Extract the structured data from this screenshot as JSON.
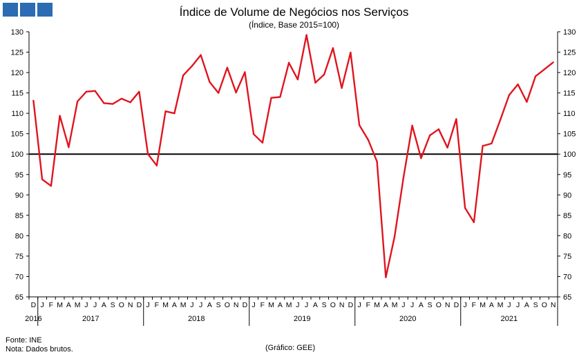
{
  "header": {
    "title": "Índice de Volume de Negócios nos Serviços",
    "subtitle": "(Índice, Base 2015=100)"
  },
  "footer": {
    "source": "Fonte: INE",
    "note": "Nota: Dados brutos.",
    "credit": "(Gráfico: GEE)"
  },
  "colors": {
    "series": "#e0141e",
    "reference_line": "#000000",
    "logo": "#2b6cb3"
  },
  "chart_data": {
    "type": "line",
    "title": "Índice de Volume de Negócios nos Serviços",
    "subtitle": "(Índice, Base 2015=100)",
    "ylim": [
      65,
      130
    ],
    "yticks": [
      65,
      70,
      75,
      80,
      85,
      90,
      95,
      100,
      105,
      110,
      115,
      120,
      125,
      130
    ],
    "y_axis_both_sides": true,
    "grid": false,
    "reference_line": 100,
    "month_labels": [
      "D",
      "J",
      "F",
      "M",
      "A",
      "M",
      "J",
      "J",
      "A",
      "S",
      "O",
      "N",
      "D",
      "J",
      "F",
      "M",
      "A",
      "M",
      "J",
      "J",
      "A",
      "S",
      "O",
      "N",
      "D",
      "J",
      "F",
      "M",
      "A",
      "M",
      "J",
      "J",
      "A",
      "S",
      "O",
      "N",
      "D",
      "J",
      "F",
      "M",
      "A",
      "M",
      "J",
      "J",
      "A",
      "S",
      "O",
      "N",
      "D",
      "J",
      "F",
      "M",
      "A",
      "M",
      "J",
      "J",
      "A",
      "S",
      "O",
      "N"
    ],
    "year_labels": [
      "2016",
      "2017",
      "2018",
      "2019",
      "2020",
      "2021"
    ],
    "x": [
      "2016-12",
      "2017-01",
      "2017-02",
      "2017-03",
      "2017-04",
      "2017-05",
      "2017-06",
      "2017-07",
      "2017-08",
      "2017-09",
      "2017-10",
      "2017-11",
      "2017-12",
      "2018-01",
      "2018-02",
      "2018-03",
      "2018-04",
      "2018-05",
      "2018-06",
      "2018-07",
      "2018-08",
      "2018-09",
      "2018-10",
      "2018-11",
      "2018-12",
      "2019-01",
      "2019-02",
      "2019-03",
      "2019-04",
      "2019-05",
      "2019-06",
      "2019-07",
      "2019-08",
      "2019-09",
      "2019-10",
      "2019-11",
      "2019-12",
      "2020-01",
      "2020-02",
      "2020-03",
      "2020-04",
      "2020-05",
      "2020-06",
      "2020-07",
      "2020-08",
      "2020-09",
      "2020-10",
      "2020-11",
      "2020-12",
      "2021-01",
      "2021-02",
      "2021-03",
      "2021-04",
      "2021-05",
      "2021-06",
      "2021-07",
      "2021-08",
      "2021-09",
      "2021-10",
      "2021-11"
    ],
    "series": [
      {
        "values": [
          113.1,
          93.8,
          92.2,
          109.4,
          101.7,
          112.9,
          115.3,
          115.5,
          112.5,
          112.3,
          113.6,
          112.7,
          115.3,
          100.0,
          97.2,
          110.5,
          110.0,
          119.3,
          121.6,
          124.3,
          117.7,
          115.0,
          121.2,
          115.1,
          120.1,
          104.9,
          102.8,
          113.8,
          114.0,
          122.4,
          118.3,
          129.2,
          117.5,
          119.5,
          126.0,
          116.2,
          124.9,
          107.1,
          103.5,
          98.2,
          69.8,
          79.8,
          94.2,
          107.0,
          99.0,
          104.6,
          106.1,
          101.6,
          108.6,
          86.8,
          83.3,
          102.0,
          102.6,
          108.4,
          114.5,
          117.1,
          112.8,
          119.1,
          120.8,
          122.5
        ]
      }
    ]
  }
}
